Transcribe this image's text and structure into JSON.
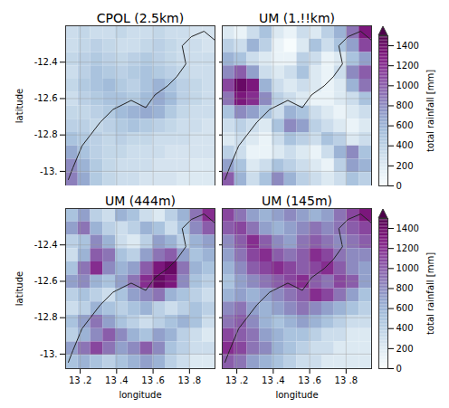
{
  "chart_data": [
    {
      "type": "heatmap",
      "title": "CPOL (2.5km)",
      "color": "bupu",
      "grid": true,
      "tick_labels": "y",
      "ylabel": "latitude",
      "xlim": [
        130.12,
        130.94
      ],
      "xticks": [
        {
          "value": 130.2,
          "label": "13 .2"
        },
        {
          "value": 130.4,
          "label": "13 .4"
        },
        {
          "value": 130.6,
          "label": "13 .6"
        },
        {
          "value": 130.8,
          "label": "13 .8"
        }
      ],
      "ylim": [
        -13.08,
        -12.2
      ],
      "yticks": [
        -12.4,
        -12.6,
        -12.8,
        {
          "value": -13,
          "label": "-13."
        }
      ],
      "cells": [
        [
          300,
          350,
          300,
          300,
          350,
          300,
          300,
          350,
          300,
          300,
          250,
          250
        ],
        [
          300,
          350,
          400,
          350,
          300,
          300,
          350,
          400,
          350,
          300,
          300,
          250
        ],
        [
          350,
          400,
          450,
          400,
          350,
          400,
          450,
          400,
          350,
          300,
          300,
          300
        ],
        [
          300,
          400,
          500,
          450,
          400,
          450,
          500,
          450,
          400,
          350,
          300,
          300
        ],
        [
          350,
          450,
          500,
          550,
          450,
          400,
          500,
          600,
          500,
          400,
          350,
          300
        ],
        [
          300,
          400,
          450,
          500,
          500,
          450,
          550,
          650,
          550,
          400,
          350,
          300
        ],
        [
          350,
          350,
          400,
          450,
          550,
          600,
          650,
          600,
          450,
          350,
          300,
          300
        ],
        [
          400,
          400,
          350,
          400,
          450,
          500,
          450,
          400,
          350,
          300,
          300,
          250
        ],
        [
          500,
          450,
          400,
          350,
          400,
          350,
          350,
          300,
          300,
          300,
          250,
          250
        ],
        [
          650,
          500,
          400,
          350,
          350,
          300,
          300,
          300,
          250,
          250,
          250,
          250
        ],
        [
          800,
          600,
          450,
          350,
          300,
          300,
          300,
          250,
          250,
          250,
          200,
          200
        ],
        [
          850,
          650,
          450,
          350,
          300,
          300,
          250,
          250,
          250,
          200,
          200,
          200
        ]
      ],
      "coastline": [
        [
          130.135,
          -13.045
        ],
        [
          130.16,
          -12.98
        ],
        [
          130.21,
          -12.86
        ],
        [
          130.31,
          -12.73
        ],
        [
          130.38,
          -12.66
        ],
        [
          130.48,
          -12.61
        ],
        [
          130.56,
          -12.65
        ],
        [
          130.61,
          -12.58
        ],
        [
          130.68,
          -12.53
        ],
        [
          130.73,
          -12.48
        ],
        [
          130.78,
          -12.41
        ],
        [
          130.76,
          -12.31
        ],
        [
          130.81,
          -12.26
        ],
        [
          130.88,
          -12.23
        ],
        [
          130.94,
          -12.28
        ]
      ]
    },
    {
      "type": "heatmap",
      "title": "UM (1.!!km)",
      "color": "bupu",
      "grid": true,
      "tick_labels": false,
      "xlim": [
        130.12,
        130.94
      ],
      "xticks": [
        {
          "value": 130.2,
          "label": "13 .2"
        },
        {
          "value": 130.4,
          "label": "13 .4"
        },
        {
          "value": 130.6,
          "label": "13 .6"
        },
        {
          "value": 130.8,
          "label": "13 .8"
        }
      ],
      "ylim": [
        -13.08,
        -12.2
      ],
      "yticks": [
        -12.4,
        -12.6,
        -12.8,
        {
          "value": -13,
          "label": "-13."
        }
      ],
      "cells": [
        [
          200,
          100,
          300,
          500,
          200,
          100,
          300,
          200,
          400,
          600,
          900,
          1300
        ],
        [
          400,
          300,
          600,
          400,
          100,
          0,
          200,
          500,
          300,
          500,
          700,
          1100
        ],
        [
          600,
          500,
          300,
          200,
          100,
          100,
          400,
          300,
          100,
          200,
          500,
          700
        ],
        [
          800,
          1000,
          700,
          300,
          200,
          300,
          500,
          200,
          100,
          300,
          800,
          1000
        ],
        [
          1100,
          1400,
          1300,
          600,
          300,
          200,
          300,
          200,
          100,
          200,
          600,
          900
        ],
        [
          900,
          1300,
          1200,
          800,
          400,
          300,
          200,
          100,
          100,
          200,
          300,
          500
        ],
        [
          500,
          800,
          700,
          500,
          300,
          600,
          500,
          300,
          200,
          100,
          200,
          300
        ],
        [
          300,
          400,
          300,
          200,
          500,
          800,
          700,
          400,
          300,
          200,
          100,
          200
        ],
        [
          200,
          300,
          200,
          100,
          300,
          500,
          400,
          300,
          500,
          400,
          200,
          300
        ],
        [
          400,
          300,
          100,
          100,
          200,
          300,
          200,
          100,
          300,
          600,
          800,
          500
        ],
        [
          700,
          500,
          200,
          300,
          500,
          400,
          300,
          200,
          100,
          400,
          700,
          600
        ],
        [
          1000,
          600,
          300,
          500,
          800,
          600,
          400,
          300,
          200,
          300,
          500,
          400
        ]
      ],
      "coastline": [
        [
          130.135,
          -13.045
        ],
        [
          130.16,
          -12.98
        ],
        [
          130.21,
          -12.86
        ],
        [
          130.31,
          -12.73
        ],
        [
          130.38,
          -12.66
        ],
        [
          130.48,
          -12.61
        ],
        [
          130.56,
          -12.65
        ],
        [
          130.61,
          -12.58
        ],
        [
          130.68,
          -12.53
        ],
        [
          130.73,
          -12.48
        ],
        [
          130.78,
          -12.41
        ],
        [
          130.76,
          -12.31
        ],
        [
          130.81,
          -12.26
        ],
        [
          130.88,
          -12.23
        ],
        [
          130.94,
          -12.28
        ]
      ],
      "colorbar": {
        "label": "total rainfall [mm]",
        "range": [
          0,
          1500
        ],
        "ticks": [
          0,
          200,
          400,
          600,
          800,
          1000,
          1200,
          1400
        ]
      }
    },
    {
      "type": "heatmap",
      "title": "UM (444m)",
      "color": "bupu",
      "grid": true,
      "tick_labels": true,
      "xlabel": "longitude",
      "ylabel": "latitude",
      "xlim": [
        130.12,
        130.94
      ],
      "xticks": [
        {
          "value": 130.2,
          "label": "13 .2"
        },
        {
          "value": 130.4,
          "label": "13 .4"
        },
        {
          "value": 130.6,
          "label": "13 .6"
        },
        {
          "value": 130.8,
          "label": "13 .8"
        }
      ],
      "ylim": [
        -13.08,
        -12.2
      ],
      "yticks": [
        -12.4,
        -12.6,
        -12.8,
        {
          "value": -13,
          "label": "-13."
        }
      ],
      "cells": [
        [
          500,
          700,
          400,
          300,
          600,
          500,
          300,
          200,
          400,
          600,
          900,
          1200
        ],
        [
          700,
          900,
          600,
          400,
          300,
          400,
          600,
          500,
          300,
          500,
          800,
          1000
        ],
        [
          400,
          500,
          800,
          600,
          300,
          200,
          400,
          700,
          600,
          400,
          600,
          700
        ],
        [
          300,
          600,
          1000,
          900,
          500,
          400,
          700,
          900,
          1000,
          700,
          500,
          600
        ],
        [
          500,
          900,
          1200,
          800,
          600,
          700,
          1000,
          1300,
          1400,
          900,
          600,
          500
        ],
        [
          700,
          800,
          600,
          500,
          700,
          900,
          1200,
          1400,
          1300,
          800,
          500,
          400
        ],
        [
          400,
          500,
          400,
          300,
          500,
          700,
          800,
          900,
          600,
          500,
          400,
          300
        ],
        [
          300,
          400,
          600,
          500,
          400,
          500,
          600,
          400,
          300,
          400,
          500,
          400
        ],
        [
          500,
          700,
          900,
          700,
          500,
          400,
          300,
          400,
          500,
          600,
          500,
          300
        ],
        [
          400,
          600,
          800,
          1000,
          800,
          600,
          500,
          700,
          600,
          400,
          300,
          200
        ],
        [
          700,
          900,
          1100,
          900,
          700,
          800,
          1000,
          800,
          500,
          400,
          300,
          300
        ],
        [
          500,
          600,
          500,
          400,
          500,
          600,
          700,
          600,
          400,
          300,
          200,
          200
        ]
      ],
      "coastline": [
        [
          130.135,
          -13.045
        ],
        [
          130.16,
          -12.98
        ],
        [
          130.21,
          -12.86
        ],
        [
          130.31,
          -12.73
        ],
        [
          130.38,
          -12.66
        ],
        [
          130.48,
          -12.61
        ],
        [
          130.56,
          -12.65
        ],
        [
          130.61,
          -12.58
        ],
        [
          130.68,
          -12.53
        ],
        [
          130.73,
          -12.48
        ],
        [
          130.78,
          -12.41
        ],
        [
          130.76,
          -12.31
        ],
        [
          130.81,
          -12.26
        ],
        [
          130.88,
          -12.23
        ],
        [
          130.94,
          -12.28
        ]
      ]
    },
    {
      "type": "heatmap",
      "title": "UM (145m)",
      "color": "bupu",
      "grid": true,
      "tick_labels": "x",
      "xlabel": "longitude",
      "xlim": [
        130.12,
        130.94
      ],
      "xticks": [
        {
          "value": 130.2,
          "label": "13 .2"
        },
        {
          "value": 130.4,
          "label": "13 .4"
        },
        {
          "value": 130.6,
          "label": "13 .6"
        },
        {
          "value": 130.8,
          "label": "13 .8"
        }
      ],
      "ylim": [
        -13.08,
        -12.2
      ],
      "yticks": [
        -12.4,
        -12.6,
        -12.8,
        {
          "value": -13,
          "label": "-13."
        }
      ],
      "cells": [
        [
          1100,
          900,
          700,
          600,
          700,
          800,
          700,
          600,
          700,
          900,
          1100,
          1300
        ],
        [
          1000,
          1100,
          900,
          700,
          600,
          700,
          800,
          900,
          800,
          900,
          1000,
          1100
        ],
        [
          800,
          1000,
          1200,
          1000,
          800,
          700,
          900,
          1000,
          900,
          800,
          900,
          1000
        ],
        [
          700,
          900,
          1100,
          1200,
          1000,
          900,
          1000,
          1200,
          1100,
          900,
          800,
          800
        ],
        [
          600,
          800,
          1000,
          1100,
          1200,
          1100,
          1000,
          1100,
          1200,
          1000,
          800,
          700
        ],
        [
          500,
          700,
          800,
          900,
          1000,
          1100,
          1200,
          1000,
          900,
          1100,
          1000,
          700
        ],
        [
          600,
          700,
          600,
          700,
          800,
          900,
          1000,
          1200,
          1100,
          900,
          700,
          500
        ],
        [
          800,
          900,
          700,
          600,
          700,
          800,
          900,
          800,
          700,
          600,
          500,
          400
        ],
        [
          900,
          1000,
          800,
          600,
          500,
          600,
          700,
          600,
          500,
          400,
          300,
          300
        ],
        [
          1100,
          1000,
          900,
          700,
          600,
          500,
          500,
          400,
          300,
          300,
          200,
          200
        ],
        [
          1200,
          1100,
          900,
          800,
          600,
          500,
          400,
          300,
          300,
          200,
          200,
          200
        ],
        [
          1000,
          900,
          700,
          600,
          500,
          400,
          300,
          300,
          200,
          200,
          200,
          200
        ]
      ],
      "coastline": [
        [
          130.135,
          -13.045
        ],
        [
          130.16,
          -12.98
        ],
        [
          130.21,
          -12.86
        ],
        [
          130.31,
          -12.73
        ],
        [
          130.38,
          -12.66
        ],
        [
          130.48,
          -12.61
        ],
        [
          130.56,
          -12.65
        ],
        [
          130.61,
          -12.58
        ],
        [
          130.68,
          -12.53
        ],
        [
          130.73,
          -12.48
        ],
        [
          130.78,
          -12.41
        ],
        [
          130.76,
          -12.31
        ],
        [
          130.81,
          -12.26
        ],
        [
          130.88,
          -12.23
        ],
        [
          130.94,
          -12.28
        ]
      ],
      "colorbar": {
        "label": "total rainfall [mm]",
        "range": [
          0,
          1500
        ],
        "ticks": [
          0,
          200,
          400,
          600,
          800,
          1000,
          1200,
          1400
        ]
      }
    }
  ]
}
